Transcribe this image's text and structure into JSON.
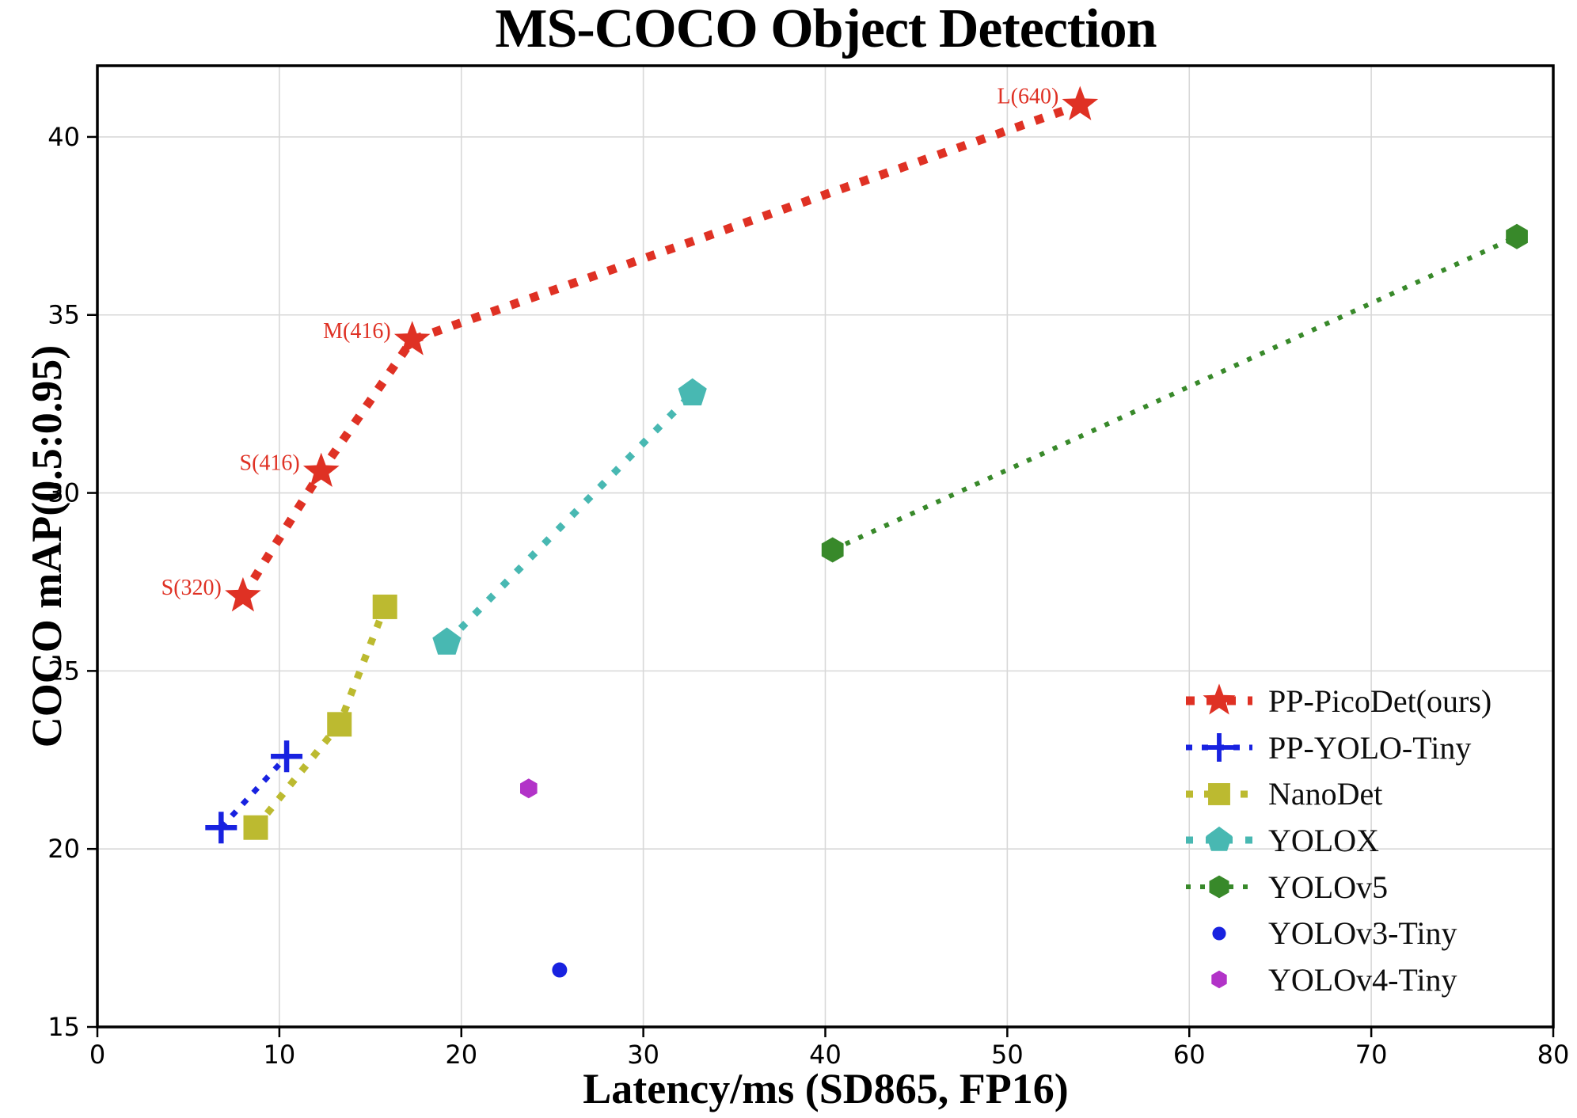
{
  "title": "MS-COCO Object Detection",
  "chart_data": {
    "type": "scatter",
    "title": "MS-COCO Object Detection",
    "xlabel": "Latency/ms (SD865, FP16)",
    "ylabel": "COCO mAP(0.5:0.95)",
    "xlim": [
      0,
      80
    ],
    "ylim": [
      15,
      42
    ],
    "xticks": [
      0,
      10,
      20,
      30,
      40,
      50,
      60,
      70,
      80
    ],
    "yticks": [
      15,
      20,
      25,
      30,
      35,
      40
    ],
    "grid": true,
    "grid_color": "#d8d8d8",
    "legend_position": "lower right",
    "series": [
      {
        "name": "PP-PicoDet(ours)",
        "color": "#df3124",
        "marker": "star",
        "line": "dotted",
        "points": [
          [
            8,
            27.1
          ],
          [
            12.3,
            30.6
          ],
          [
            17.3,
            34.3
          ],
          [
            54,
            40.9
          ]
        ],
        "point_labels": [
          "S(320)",
          "S(416)",
          "M(416)",
          "L(640)"
        ]
      },
      {
        "name": "PP-YOLO-Tiny",
        "color": "#1822e0",
        "marker": "plus",
        "line": "dashed",
        "points": [
          [
            6.8,
            20.6
          ],
          [
            10.4,
            22.6
          ]
        ],
        "point_labels": []
      },
      {
        "name": "NanoDet",
        "color": "#bcba30",
        "marker": "square",
        "line": "dashed",
        "points": [
          [
            8.7,
            20.6
          ],
          [
            13.3,
            23.5
          ],
          [
            15.8,
            26.8
          ]
        ],
        "point_labels": []
      },
      {
        "name": "YOLOX",
        "color": "#48b8b2",
        "marker": "pentagon",
        "line": "dashed",
        "points": [
          [
            19.2,
            25.8
          ],
          [
            32.7,
            32.8
          ]
        ],
        "point_labels": []
      },
      {
        "name": "YOLOv5",
        "color": "#38892a",
        "marker": "hexagon",
        "line": "dotted",
        "points": [
          [
            40.4,
            28.4
          ],
          [
            78,
            37.2
          ]
        ],
        "point_labels": []
      },
      {
        "name": "YOLOv3-Tiny",
        "color": "#1822e0",
        "marker": "circle",
        "line": "none",
        "points": [
          [
            25.4,
            16.6
          ]
        ],
        "point_labels": []
      },
      {
        "name": "YOLOv4-Tiny",
        "color": "#b233c8",
        "marker": "hexagon-small",
        "line": "none",
        "points": [
          [
            23.7,
            21.7
          ]
        ],
        "point_labels": []
      }
    ]
  }
}
